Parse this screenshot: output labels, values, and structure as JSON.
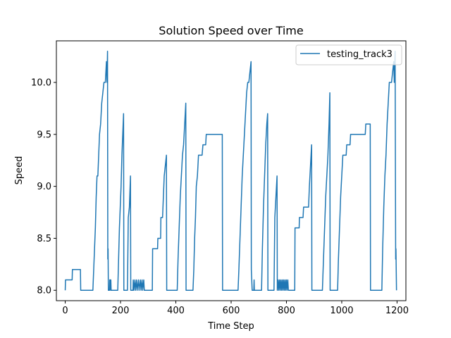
{
  "chart_data": {
    "type": "line",
    "title": "Solution Speed over Time",
    "xlabel": "Time Step",
    "ylabel": "Speed",
    "xlim": [
      -32,
      1232
    ],
    "ylim": [
      7.9,
      10.4
    ],
    "xticks": [
      0,
      200,
      400,
      600,
      800,
      1000,
      1200
    ],
    "yticks": [
      8.0,
      8.5,
      9.0,
      9.5,
      10.0
    ],
    "ytick_labels": [
      "8.0",
      "8.5",
      "9.0",
      "9.5",
      "10.0"
    ],
    "grid": false,
    "legend": {
      "location": "upper right"
    },
    "line_color": "#1f77b4",
    "series": [
      {
        "name": "testing_track3",
        "points": [
          [
            0,
            8.0
          ],
          [
            1,
            8.1
          ],
          [
            25,
            8.1
          ],
          [
            26,
            8.2
          ],
          [
            55,
            8.2
          ],
          [
            56,
            8.0
          ],
          [
            100,
            8.0
          ],
          [
            103,
            8.2
          ],
          [
            106,
            8.4
          ],
          [
            109,
            8.6
          ],
          [
            112,
            8.9
          ],
          [
            115,
            9.1
          ],
          [
            118,
            9.1
          ],
          [
            121,
            9.3
          ],
          [
            124,
            9.5
          ],
          [
            128,
            9.6
          ],
          [
            132,
            9.8
          ],
          [
            136,
            9.9
          ],
          [
            140,
            10.0
          ],
          [
            145,
            10.0
          ],
          [
            147,
            10.1
          ],
          [
            149,
            10.2
          ],
          [
            151,
            10.0
          ],
          [
            153,
            10.3
          ],
          [
            154,
            8.3
          ],
          [
            155,
            8.4
          ],
          [
            156,
            8.0
          ],
          [
            160,
            8.0
          ],
          [
            161,
            8.1
          ],
          [
            163,
            8.1
          ],
          [
            164,
            8.0
          ],
          [
            165,
            8.1
          ],
          [
            166,
            8.0
          ],
          [
            190,
            8.0
          ],
          [
            193,
            8.3
          ],
          [
            196,
            8.6
          ],
          [
            199,
            8.8
          ],
          [
            202,
            9.0
          ],
          [
            205,
            9.3
          ],
          [
            208,
            9.5
          ],
          [
            211,
            9.7
          ],
          [
            212,
            8.0
          ],
          [
            225,
            8.0
          ],
          [
            228,
            8.7
          ],
          [
            232,
            8.8
          ],
          [
            236,
            9.1
          ],
          [
            237,
            8.0
          ],
          [
            245,
            8.0
          ],
          [
            246,
            8.1
          ],
          [
            248,
            8.0
          ],
          [
            252,
            8.1
          ],
          [
            254,
            8.0
          ],
          [
            258,
            8.1
          ],
          [
            260,
            8.0
          ],
          [
            265,
            8.1
          ],
          [
            267,
            8.0
          ],
          [
            272,
            8.1
          ],
          [
            274,
            8.0
          ],
          [
            278,
            8.1
          ],
          [
            280,
            8.0
          ],
          [
            284,
            8.1
          ],
          [
            286,
            8.0
          ],
          [
            315,
            8.0
          ],
          [
            316,
            8.4
          ],
          [
            334,
            8.4
          ],
          [
            335,
            8.5
          ],
          [
            345,
            8.5
          ],
          [
            346,
            8.7
          ],
          [
            352,
            8.7
          ],
          [
            355,
            8.9
          ],
          [
            358,
            9.1
          ],
          [
            362,
            9.2
          ],
          [
            366,
            9.3
          ],
          [
            367,
            8.0
          ],
          [
            405,
            8.0
          ],
          [
            408,
            8.3
          ],
          [
            412,
            8.6
          ],
          [
            416,
            8.9
          ],
          [
            420,
            9.1
          ],
          [
            424,
            9.3
          ],
          [
            428,
            9.4
          ],
          [
            432,
            9.6
          ],
          [
            436,
            9.8
          ],
          [
            437,
            8.0
          ],
          [
            462,
            8.0
          ],
          [
            465,
            8.2
          ],
          [
            468,
            8.5
          ],
          [
            471,
            8.7
          ],
          [
            474,
            9.0
          ],
          [
            478,
            9.1
          ],
          [
            482,
            9.3
          ],
          [
            495,
            9.3
          ],
          [
            498,
            9.4
          ],
          [
            508,
            9.4
          ],
          [
            510,
            9.5
          ],
          [
            568,
            9.5
          ],
          [
            569,
            8.0
          ],
          [
            625,
            8.0
          ],
          [
            628,
            8.2
          ],
          [
            632,
            8.5
          ],
          [
            636,
            8.8
          ],
          [
            640,
            9.1
          ],
          [
            644,
            9.3
          ],
          [
            648,
            9.5
          ],
          [
            652,
            9.7
          ],
          [
            656,
            9.9
          ],
          [
            660,
            10.0
          ],
          [
            664,
            10.0
          ],
          [
            668,
            10.1
          ],
          [
            672,
            10.2
          ],
          [
            673,
            8.2
          ],
          [
            676,
            8.0
          ],
          [
            682,
            8.0
          ],
          [
            683,
            8.1
          ],
          [
            684,
            8.0
          ],
          [
            710,
            8.0
          ],
          [
            713,
            8.4
          ],
          [
            717,
            8.8
          ],
          [
            721,
            9.1
          ],
          [
            725,
            9.4
          ],
          [
            729,
            9.6
          ],
          [
            732,
            9.7
          ],
          [
            733,
            8.0
          ],
          [
            755,
            8.0
          ],
          [
            758,
            8.7
          ],
          [
            762,
            8.9
          ],
          [
            766,
            9.1
          ],
          [
            767,
            8.0
          ],
          [
            770,
            8.1
          ],
          [
            772,
            8.0
          ],
          [
            775,
            8.1
          ],
          [
            777,
            8.0
          ],
          [
            780,
            8.1
          ],
          [
            782,
            8.0
          ],
          [
            785,
            8.1
          ],
          [
            787,
            8.0
          ],
          [
            790,
            8.1
          ],
          [
            792,
            8.0
          ],
          [
            795,
            8.1
          ],
          [
            797,
            8.0
          ],
          [
            800,
            8.1
          ],
          [
            802,
            8.0
          ],
          [
            805,
            8.1
          ],
          [
            807,
            8.0
          ],
          [
            830,
            8.0
          ],
          [
            831,
            8.6
          ],
          [
            846,
            8.6
          ],
          [
            847,
            8.7
          ],
          [
            860,
            8.7
          ],
          [
            862,
            8.8
          ],
          [
            880,
            8.8
          ],
          [
            883,
            9.0
          ],
          [
            887,
            9.2
          ],
          [
            891,
            9.4
          ],
          [
            892,
            8.0
          ],
          [
            930,
            8.0
          ],
          [
            934,
            8.3
          ],
          [
            938,
            8.6
          ],
          [
            942,
            8.9
          ],
          [
            946,
            9.1
          ],
          [
            950,
            9.3
          ],
          [
            954,
            9.6
          ],
          [
            957,
            9.9
          ],
          [
            958,
            8.0
          ],
          [
            985,
            8.0
          ],
          [
            988,
            8.3
          ],
          [
            992,
            8.6
          ],
          [
            996,
            8.9
          ],
          [
            1000,
            9.1
          ],
          [
            1004,
            9.3
          ],
          [
            1016,
            9.3
          ],
          [
            1018,
            9.4
          ],
          [
            1030,
            9.4
          ],
          [
            1032,
            9.5
          ],
          [
            1085,
            9.5
          ],
          [
            1087,
            9.6
          ],
          [
            1103,
            9.6
          ],
          [
            1104,
            8.0
          ],
          [
            1145,
            8.0
          ],
          [
            1148,
            8.4
          ],
          [
            1152,
            8.8
          ],
          [
            1156,
            9.1
          ],
          [
            1160,
            9.3
          ],
          [
            1164,
            9.6
          ],
          [
            1168,
            9.8
          ],
          [
            1172,
            10.0
          ],
          [
            1180,
            10.0
          ],
          [
            1184,
            10.1
          ],
          [
            1188,
            10.2
          ],
          [
            1190,
            10.0
          ],
          [
            1193,
            10.3
          ],
          [
            1195,
            8.3
          ],
          [
            1196,
            8.4
          ],
          [
            1198,
            8.0
          ]
        ]
      }
    ]
  }
}
